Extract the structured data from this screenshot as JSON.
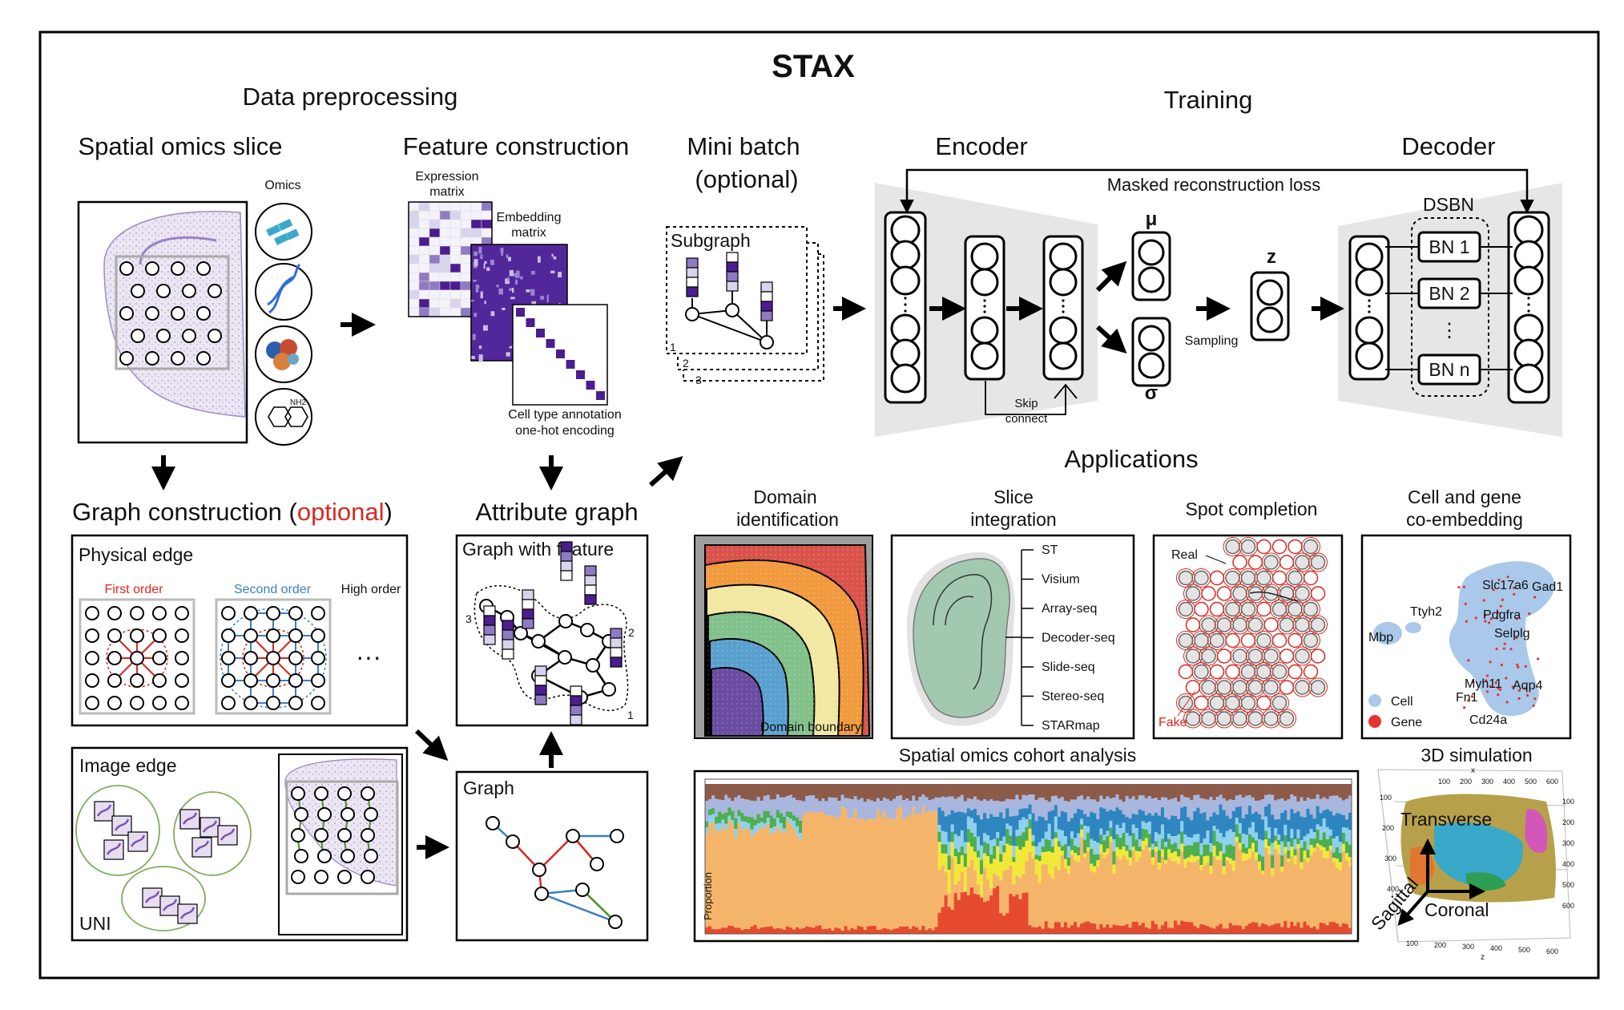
{
  "title": "STAX",
  "sections": {
    "preprocessing": "Data preprocessing",
    "training": "Training",
    "applications": "Applications"
  },
  "slice": {
    "title": "Spatial omics slice",
    "omics_label": "Omics",
    "nh2": "NH2"
  },
  "feature": {
    "title": "Feature construction",
    "expr_line1": "Expression",
    "expr_line2": "matrix",
    "emb_line1": "Embedding",
    "emb_line2": "matrix",
    "onehot_line1": "Cell type annotation",
    "onehot_line2": "one-hot encoding"
  },
  "minibatch": {
    "title_line1": "Mini batch",
    "title_line2": "(optional)",
    "subgraph": "Subgraph",
    "idx1": "1",
    "idx2": "2",
    "idx3": "3"
  },
  "encoder": {
    "title": "Encoder",
    "skip_line1": "Skip",
    "skip_line2": "connect",
    "mu": "μ",
    "sigma": "σ",
    "sampling": "Sampling",
    "z": "z"
  },
  "decoder": {
    "title": "Decoder",
    "dsbn": "DSBN",
    "bn1": "BN 1",
    "bn2": "BN 2",
    "bn_dots": "⋮",
    "bnn": "BN n"
  },
  "loss": "Masked reconstruction loss",
  "graph_construction": {
    "title_prefix": "Graph construction (",
    "title_optional": "optional",
    "title_suffix": ")",
    "physical_edge": "Physical edge",
    "first_order": "First order",
    "second_order": "Second order",
    "high_order": "High order",
    "ellipsis": "···",
    "image_edge": "Image edge",
    "uni": "UNI"
  },
  "attribute_graph": {
    "title": "Attribute graph",
    "box_title": "Graph with feature",
    "idx1": "1",
    "idx2": "2",
    "idx3": "3"
  },
  "graph": {
    "title": "Graph"
  },
  "apps": {
    "domain": {
      "line1": "Domain",
      "line2": "identification",
      "boundary": "Domain boundary"
    },
    "slice_int": {
      "line1": "Slice",
      "line2": "integration",
      "techs": [
        "ST",
        "Visium",
        "Array-seq",
        "Decoder-seq",
        "Slide-seq",
        "Stereo-seq",
        "STARmap"
      ]
    },
    "spot": {
      "title": "Spot completion",
      "real": "Real",
      "fake": "Fake"
    },
    "coembed": {
      "line1": "Cell and gene",
      "line2": "co-embedding",
      "genes": [
        "Slc17a6",
        "Gad1",
        "Ttyh2",
        "Pdgfra",
        "Mbp",
        "Selplg",
        "Myh11",
        "Aqp4",
        "Fn1",
        "Cd24a"
      ],
      "legend_cell": "Cell",
      "legend_gene": "Gene",
      "cell_color": "#a9c8ea",
      "gene_color": "#e8322e"
    },
    "cohort": {
      "title": "Spatial omics cohort analysis",
      "ylabel": "Proportion"
    },
    "sim3d": {
      "title": "3D simulation",
      "transverse": "Transverse",
      "sagittal": "Sagittal",
      "coronal": "Coronal",
      "ticks_top": [
        "100",
        "200",
        "300",
        "400",
        "500",
        "600"
      ],
      "ticks_bottom": [
        "100",
        "200",
        "300",
        "400",
        "500",
        "600"
      ],
      "ticks_right": [
        "100",
        "200",
        "300",
        "400",
        "500",
        "600"
      ],
      "ticks_left": [
        "100",
        "200",
        "300",
        "400"
      ],
      "axis_x": "x",
      "axis_z": "z"
    }
  },
  "colors": {
    "purple": "#4b1d8f",
    "accent_red": "#d8281f",
    "blue_edge": "#3a7fc0",
    "red_edge": "#d8281f",
    "green_edge": "#4a8f2a",
    "panel_grey": "#e6e6e6"
  }
}
